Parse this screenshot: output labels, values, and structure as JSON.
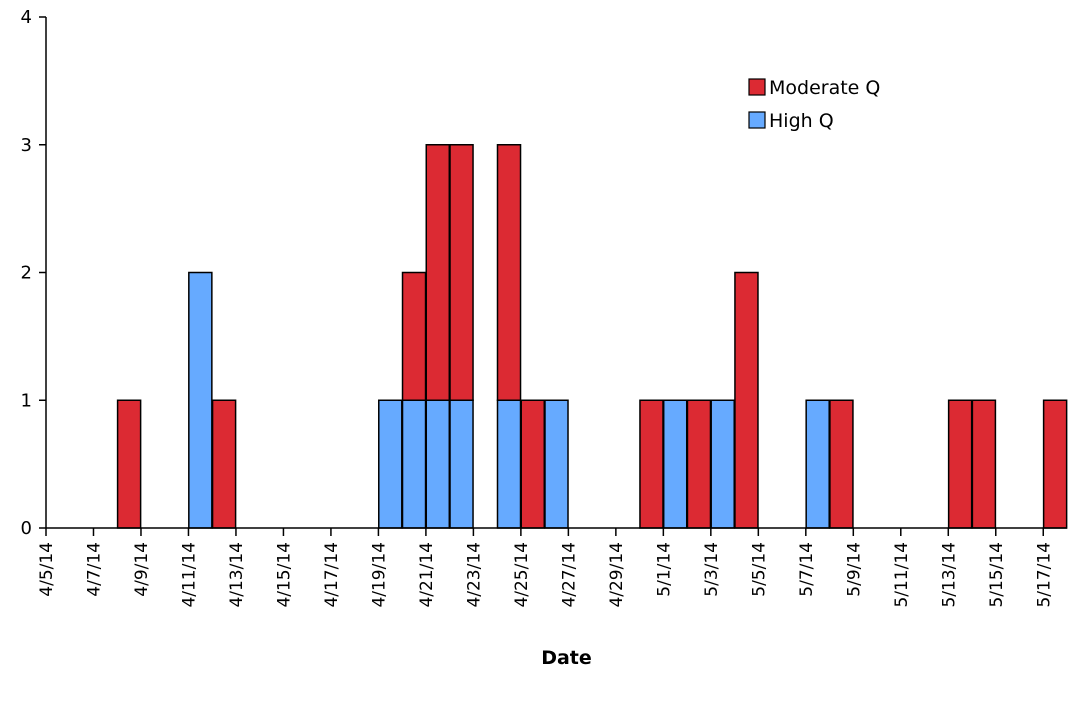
{
  "colors": {
    "moderate": "#dc2a33",
    "high": "#66aaff",
    "outline": "#000000"
  },
  "chart_data": {
    "type": "bar",
    "stacked": true,
    "title": "",
    "xlabel": "Date",
    "ylabel": "",
    "ylim": [
      0,
      4
    ],
    "yticks": [
      0,
      1,
      2,
      3,
      4
    ],
    "grid": false,
    "legend_position": "top-right",
    "x_start": "4/5/14",
    "x_tick_labels": [
      "4/5/14",
      "4/7/14",
      "4/9/14",
      "4/11/14",
      "4/13/14",
      "4/15/14",
      "4/17/14",
      "4/19/14",
      "4/21/14",
      "4/23/14",
      "4/25/14",
      "4/27/14",
      "4/29/14",
      "5/1/14",
      "5/3/14",
      "5/5/14",
      "5/7/14",
      "5/9/14",
      "5/11/14",
      "5/13/14",
      "5/15/14",
      "5/17/14"
    ],
    "categories": [
      "4/5/14",
      "4/6/14",
      "4/7/14",
      "4/8/14",
      "4/9/14",
      "4/10/14",
      "4/11/14",
      "4/12/14",
      "4/13/14",
      "4/14/14",
      "4/15/14",
      "4/16/14",
      "4/17/14",
      "4/18/14",
      "4/19/14",
      "4/20/14",
      "4/21/14",
      "4/22/14",
      "4/23/14",
      "4/24/14",
      "4/25/14",
      "4/26/14",
      "4/27/14",
      "4/28/14",
      "4/29/14",
      "4/30/14",
      "5/1/14",
      "5/2/14",
      "5/3/14",
      "5/4/14",
      "5/5/14",
      "5/6/14",
      "5/7/14",
      "5/8/14",
      "5/9/14",
      "5/10/14",
      "5/11/14",
      "5/12/14",
      "5/13/14",
      "5/14/14",
      "5/15/14",
      "5/16/14",
      "5/17/14"
    ],
    "series": [
      {
        "name": "High Q",
        "color": "#66aaff",
        "values": [
          0,
          0,
          0,
          0,
          0,
          0,
          2,
          0,
          0,
          0,
          0,
          0,
          0,
          0,
          1,
          1,
          1,
          1,
          0,
          1,
          0,
          1,
          0,
          0,
          0,
          0,
          1,
          0,
          1,
          0,
          0,
          0,
          1,
          0,
          0,
          0,
          0,
          0,
          0,
          0,
          0,
          0,
          0
        ]
      },
      {
        "name": "Moderate Q",
        "color": "#dc2a33",
        "values": [
          0,
          0,
          0,
          1,
          0,
          0,
          0,
          1,
          0,
          0,
          0,
          0,
          0,
          0,
          0,
          1,
          2,
          2,
          0,
          2,
          1,
          0,
          0,
          0,
          0,
          1,
          0,
          1,
          0,
          2,
          0,
          0,
          0,
          1,
          0,
          0,
          0,
          0,
          1,
          1,
          0,
          0,
          1
        ]
      }
    ],
    "legend": [
      {
        "label": "Moderate Q",
        "color": "#dc2a33"
      },
      {
        "label": "High Q",
        "color": "#66aaff"
      }
    ]
  }
}
